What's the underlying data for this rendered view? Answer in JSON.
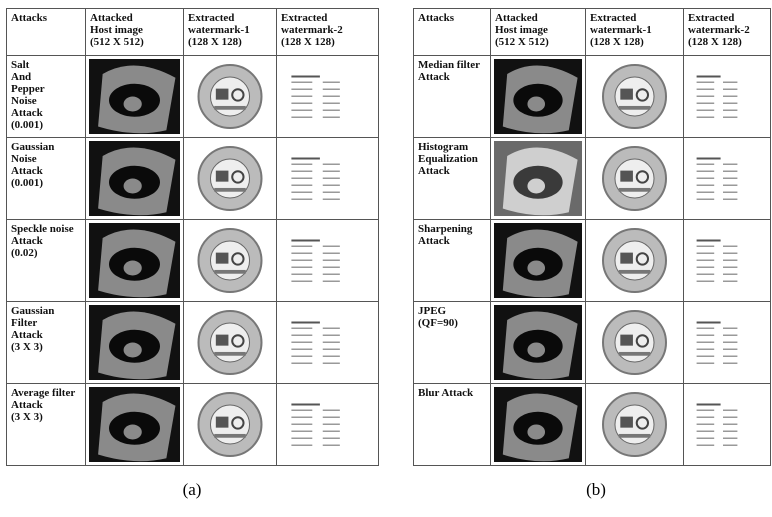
{
  "panels": [
    {
      "label": "(a)",
      "header": [
        "Attacks",
        "Attacked\nHost image\n(512 X 512)",
        "Extracted\nwatermark-1\n(128 X 128)",
        "Extracted\nwatermark-2\n(128 X 128)"
      ],
      "rows": [
        {
          "attack": "Salt\nAnd\nPepper\nNoise\nAttack\n(0.001)"
        },
        {
          "attack": "Gaussian\nNoise\nAttack\n(0.001)"
        },
        {
          "attack": "Speckle noise\nAttack\n(0.02)"
        },
        {
          "attack": "Gaussian\nFilter\nAttack\n(3 X 3)"
        },
        {
          "attack": "Average filter\nAttack\n(3 X 3)"
        }
      ]
    },
    {
      "label": "(b)",
      "header": [
        "Attacks",
        "Attacked\nHost image\n(512 X 512)",
        "Extracted\nwatermark-1\n(128 X 128)",
        "Extracted\nwatermark-2\n(128 X 128)"
      ],
      "rows": [
        {
          "attack": "Median filter\nAttack"
        },
        {
          "attack": "Histogram\nEqualization\nAttack"
        },
        {
          "attack": "Sharpening\nAttack"
        },
        {
          "attack": "JPEG\n(QF=90)"
        },
        {
          "attack": "Blur Attack"
        }
      ]
    }
  ]
}
